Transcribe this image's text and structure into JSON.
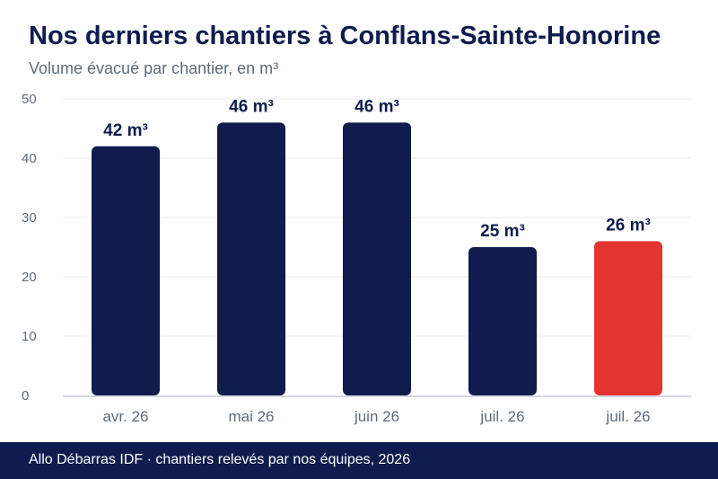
{
  "header": {
    "title": "Nos derniers chantiers à Conflans-Sainte-Honorine",
    "subtitle": "Volume évacué par chantier, en m³"
  },
  "footer": {
    "source": "Allo Débarras IDF · chantiers relevés par nos équipes, 2026"
  },
  "colors": {
    "bar": "#0f1c4d",
    "highlight": "#e3342f",
    "grid": "#ececf0",
    "axis": "#c8cad8",
    "tick_text": "#5e6b7a",
    "label_text": "#0f1c4d"
  },
  "chart_data": {
    "type": "bar",
    "categories": [
      "avr. 26",
      "mai 26",
      "juin 26",
      "juil. 26",
      "juil. 26"
    ],
    "values": [
      42,
      46,
      46,
      25,
      26
    ],
    "value_labels": [
      "42 m³",
      "46 m³",
      "46 m³",
      "25 m³",
      "26 m³"
    ],
    "highlight_index": 4,
    "yticks": [
      0,
      10,
      20,
      30,
      40,
      50
    ],
    "ylim": [
      0,
      50
    ],
    "grid": true,
    "legend": false
  }
}
